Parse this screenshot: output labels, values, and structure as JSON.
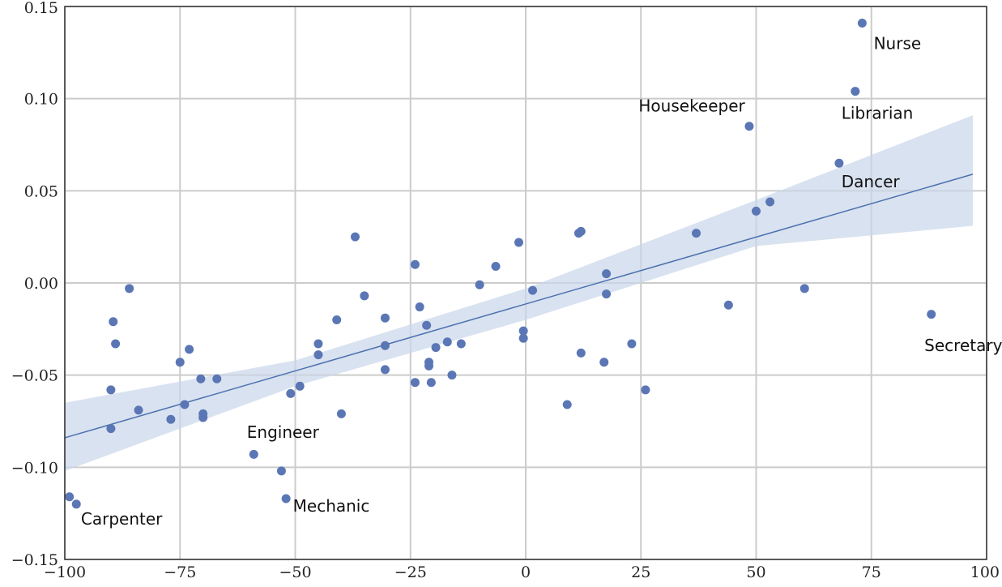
{
  "chart_data": {
    "type": "scatter",
    "title": "",
    "xlabel": "",
    "ylabel": "",
    "xlim": [
      -100,
      100
    ],
    "ylim": [
      -0.15,
      0.15
    ],
    "grid": true,
    "x_ticks": [
      -100,
      -75,
      -50,
      -25,
      0,
      25,
      50,
      75,
      100
    ],
    "x_tick_labels": [
      "−100",
      "−75",
      "−50",
      "−25",
      "0",
      "25",
      "50",
      "75",
      "100"
    ],
    "y_ticks": [
      -0.15,
      -0.1,
      -0.05,
      0.0,
      0.05,
      0.1,
      0.15
    ],
    "y_tick_labels": [
      "−0.15",
      "−0.10",
      "−0.05",
      "0.00",
      "0.05",
      "0.10",
      "0.15"
    ],
    "colors": {
      "points": "#5a76b5",
      "line": "#4c72b0",
      "band": "#c9d5e9"
    },
    "points": [
      {
        "x": -99,
        "y": -0.116
      },
      {
        "x": -97.5,
        "y": -0.12
      },
      {
        "x": -90,
        "y": -0.079
      },
      {
        "x": -90,
        "y": -0.058
      },
      {
        "x": -89.5,
        "y": -0.021
      },
      {
        "x": -89,
        "y": -0.033
      },
      {
        "x": -86,
        "y": -0.003
      },
      {
        "x": -84,
        "y": -0.069
      },
      {
        "x": -77,
        "y": -0.074
      },
      {
        "x": -75,
        "y": -0.043
      },
      {
        "x": -74,
        "y": -0.066
      },
      {
        "x": -73,
        "y": -0.036
      },
      {
        "x": -70.5,
        "y": -0.052
      },
      {
        "x": -70,
        "y": -0.073
      },
      {
        "x": -70,
        "y": -0.071
      },
      {
        "x": -67,
        "y": -0.052
      },
      {
        "x": -59,
        "y": -0.093
      },
      {
        "x": -53,
        "y": -0.102
      },
      {
        "x": -52,
        "y": -0.117
      },
      {
        "x": -51,
        "y": -0.06
      },
      {
        "x": -49,
        "y": -0.056
      },
      {
        "x": -45,
        "y": -0.033
      },
      {
        "x": -45,
        "y": -0.039
      },
      {
        "x": -41,
        "y": -0.02
      },
      {
        "x": -40,
        "y": -0.071
      },
      {
        "x": -37,
        "y": 0.025
      },
      {
        "x": -35,
        "y": -0.007
      },
      {
        "x": -30.5,
        "y": -0.019
      },
      {
        "x": -30.5,
        "y": -0.034
      },
      {
        "x": -30.5,
        "y": -0.047
      },
      {
        "x": -24,
        "y": 0.01
      },
      {
        "x": -24,
        "y": -0.054
      },
      {
        "x": -23,
        "y": -0.013
      },
      {
        "x": -21.5,
        "y": -0.023
      },
      {
        "x": -21,
        "y": -0.043
      },
      {
        "x": -21,
        "y": -0.045
      },
      {
        "x": -20.5,
        "y": -0.054
      },
      {
        "x": -19.5,
        "y": -0.035
      },
      {
        "x": -17,
        "y": -0.032
      },
      {
        "x": -16,
        "y": -0.05
      },
      {
        "x": -14,
        "y": -0.033
      },
      {
        "x": -10,
        "y": -0.001
      },
      {
        "x": -6.5,
        "y": 0.009
      },
      {
        "x": -1.5,
        "y": 0.022
      },
      {
        "x": -0.5,
        "y": -0.026
      },
      {
        "x": -0.5,
        "y": -0.03
      },
      {
        "x": 1.5,
        "y": -0.004
      },
      {
        "x": 9,
        "y": -0.066
      },
      {
        "x": 11.5,
        "y": 0.027
      },
      {
        "x": 12,
        "y": 0.028
      },
      {
        "x": 12,
        "y": -0.038
      },
      {
        "x": 17,
        "y": -0.043
      },
      {
        "x": 17.5,
        "y": 0.005
      },
      {
        "x": 17.5,
        "y": -0.006
      },
      {
        "x": 23,
        "y": -0.033
      },
      {
        "x": 26,
        "y": -0.058
      },
      {
        "x": 37,
        "y": 0.027
      },
      {
        "x": 44,
        "y": -0.012
      },
      {
        "x": 48.5,
        "y": 0.085
      },
      {
        "x": 50,
        "y": 0.039
      },
      {
        "x": 53,
        "y": 0.044
      },
      {
        "x": 60.5,
        "y": -0.003
      },
      {
        "x": 68,
        "y": 0.065
      },
      {
        "x": 71.5,
        "y": 0.104
      },
      {
        "x": 73,
        "y": 0.141
      },
      {
        "x": 88,
        "y": -0.017
      }
    ],
    "regression": {
      "x": [
        -100,
        97
      ],
      "y": [
        -0.084,
        0.059
      ]
    },
    "confidence_band": {
      "x": [
        -100,
        -50,
        0,
        50,
        97
      ],
      "upper": [
        -0.065,
        -0.042,
        -0.003,
        0.045,
        0.091
      ],
      "lower": [
        -0.102,
        -0.056,
        -0.02,
        0.02,
        0.031
      ]
    },
    "annotations": [
      {
        "text": "Nurse",
        "x": 75.5,
        "y": 0.127
      },
      {
        "text": "Librarian",
        "x": 68.5,
        "y": 0.089
      },
      {
        "text": "Housekeeper",
        "x": 24.5,
        "y": 0.093
      },
      {
        "text": "Dancer",
        "x": 68.5,
        "y": 0.052
      },
      {
        "text": "Secretary",
        "x": 86.5,
        "y": -0.037
      },
      {
        "text": "Engineer",
        "x": -60.5,
        "y": -0.084
      },
      {
        "text": "Mechanic",
        "x": -50.5,
        "y": -0.124
      },
      {
        "text": "Carpenter",
        "x": -96.5,
        "y": -0.131
      }
    ]
  }
}
